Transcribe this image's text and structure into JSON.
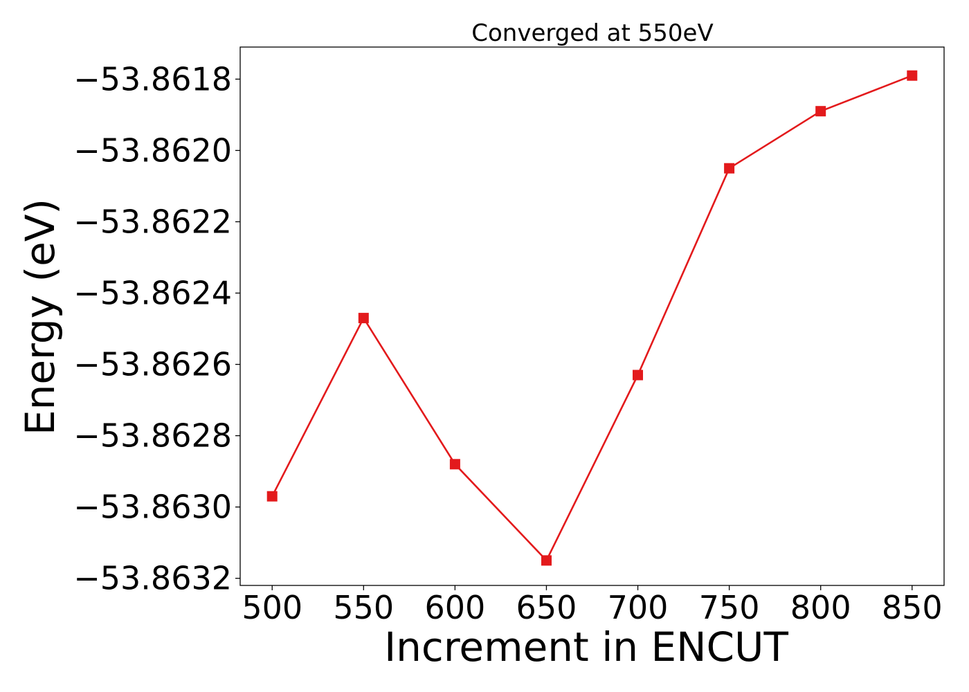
{
  "chart_data": {
    "type": "line",
    "title": "Converged at 550eV",
    "xlabel": "Increment in ENCUT",
    "ylabel": "Energy (eV)",
    "x": [
      500,
      550,
      600,
      650,
      700,
      750,
      800,
      850
    ],
    "xlim": [
      482.5,
      867.5
    ],
    "ylim": [
      -53.86322,
      -53.86171
    ],
    "x_ticks": [
      500,
      550,
      600,
      650,
      700,
      750,
      800,
      850
    ],
    "x_tick_labels": [
      "500",
      "550",
      "600",
      "650",
      "700",
      "750",
      "800",
      "850"
    ],
    "y_ticks": [
      -53.8632,
      -53.863,
      -53.8628,
      -53.8626,
      -53.8624,
      -53.8622,
      -53.862,
      -53.8618
    ],
    "y_tick_labels": [
      "−53.8632",
      "−53.8630",
      "−53.8628",
      "−53.8626",
      "−53.8624",
      "−53.8622",
      "−53.8620",
      "−53.8618"
    ],
    "series": [
      {
        "values": [
          -53.86297,
          -53.86247,
          -53.86288,
          -53.86315,
          -53.86263,
          -53.86205,
          -53.86189,
          -53.86179
        ],
        "color": "#e31a1c",
        "marker": "square"
      }
    ],
    "grid": false,
    "legend": "none"
  }
}
